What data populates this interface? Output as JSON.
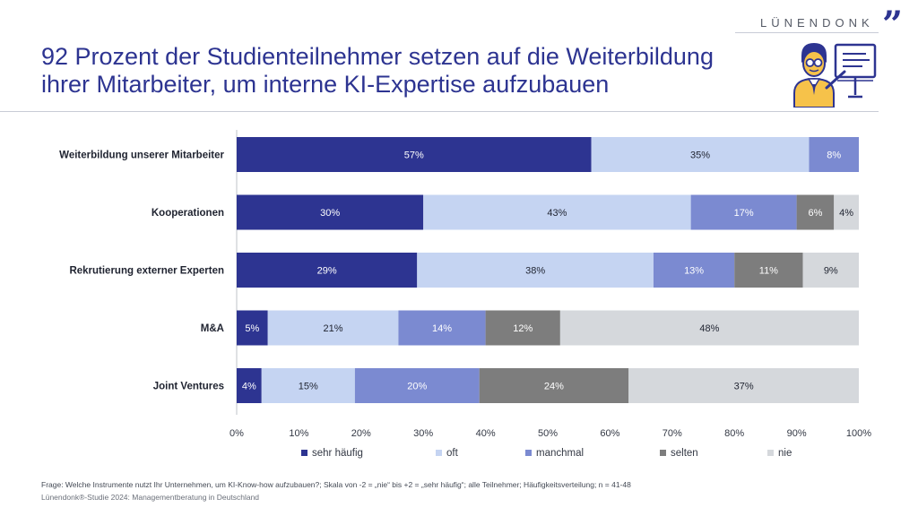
{
  "brand": {
    "name": "LÜNENDONK",
    "mark": "”"
  },
  "title": {
    "line1": "92 Prozent der Studienteilnehmer setzen auf die Weiterbildung",
    "line2": "ihrer Mitarbeiter, um interne KI-Expertise aufzubauen"
  },
  "chart_data": {
    "type": "bar",
    "orientation": "horizontal",
    "stacked": true,
    "categories": [
      "Weiterbildung unserer Mitarbeiter",
      "Kooperationen",
      "Rekrutierung externer Experten",
      "M&A",
      "Joint Ventures"
    ],
    "series": [
      {
        "name": "sehr häufig",
        "color": "#2d3491",
        "values": [
          57,
          30,
          29,
          5,
          4
        ]
      },
      {
        "name": "oft",
        "color": "#c5d4f2",
        "values": [
          35,
          43,
          38,
          21,
          15
        ]
      },
      {
        "name": "manchmal",
        "color": "#7b8ad1",
        "values": [
          8,
          17,
          13,
          14,
          20
        ]
      },
      {
        "name": "selten",
        "color": "#7d7d7d",
        "values": [
          0,
          6,
          11,
          12,
          24
        ]
      },
      {
        "name": "nie",
        "color": "#d5d8dc",
        "values": [
          0,
          4,
          9,
          48,
          37
        ]
      }
    ],
    "xlim": [
      0,
      100
    ],
    "xticks": [
      0,
      10,
      20,
      30,
      40,
      50,
      60,
      70,
      80,
      90,
      100
    ],
    "tick_suffix": "%",
    "legend_position": "bottom"
  },
  "footnotes": {
    "question": "Frage: Welche Instrumente nutzt Ihr Unternehmen, um KI-Know-how aufzubauen?; Skala von -2 = „nie“ bis +2 = „sehr häufig“; alle Teilnehmer; Häufigkeitsverteilung; n = 41-48",
    "source": "Lünendonk®-Studie 2024: Managementberatung in Deutschland"
  }
}
